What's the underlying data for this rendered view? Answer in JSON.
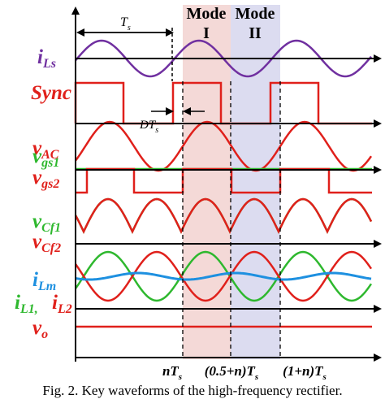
{
  "modes": [
    {
      "line1": "Mode",
      "line2": "I"
    },
    {
      "line1": "Mode",
      "line2": "II"
    }
  ],
  "period_label": {
    "main": "T",
    "sub": "s"
  },
  "duty_label": {
    "main": "DT",
    "sub": "s"
  },
  "labels": [
    {
      "main": "i",
      "sub": "Ls",
      "color": "#7030a0"
    },
    {
      "main": "Sync",
      "sub": "",
      "color": "#e0201b"
    },
    {
      "main": "v",
      "sub": "AC",
      "color": "#e0201b"
    },
    {
      "main": "v",
      "sub": "gs1",
      "color": "#2eb82e"
    },
    {
      "main": "v",
      "sub": "gs2",
      "color": "#e0201b"
    },
    {
      "main": "v",
      "sub": "Cf1",
      "color": "#2eb82e"
    },
    {
      "main": "v",
      "sub": "Cf2",
      "color": "#e0201b"
    },
    {
      "main": "i",
      "sub": "Lm",
      "color": "#1e90e0"
    },
    {
      "main": "i",
      "sub": "L1,",
      "color": "#2eb82e"
    },
    {
      "main": "i",
      "sub": "L2",
      "color": "#e0201b"
    },
    {
      "main": "v",
      "sub": "o",
      "color": "#e0201b"
    }
  ],
  "time_labels": [
    {
      "main": "nT",
      "sub": "s"
    },
    {
      "main": "(0.5+n)T",
      "sub": "s"
    },
    {
      "main": "(1+n)T",
      "sub": "s"
    }
  ],
  "caption": "Fig. 2. Key waveforms of the high-frequency rectifier."
}
